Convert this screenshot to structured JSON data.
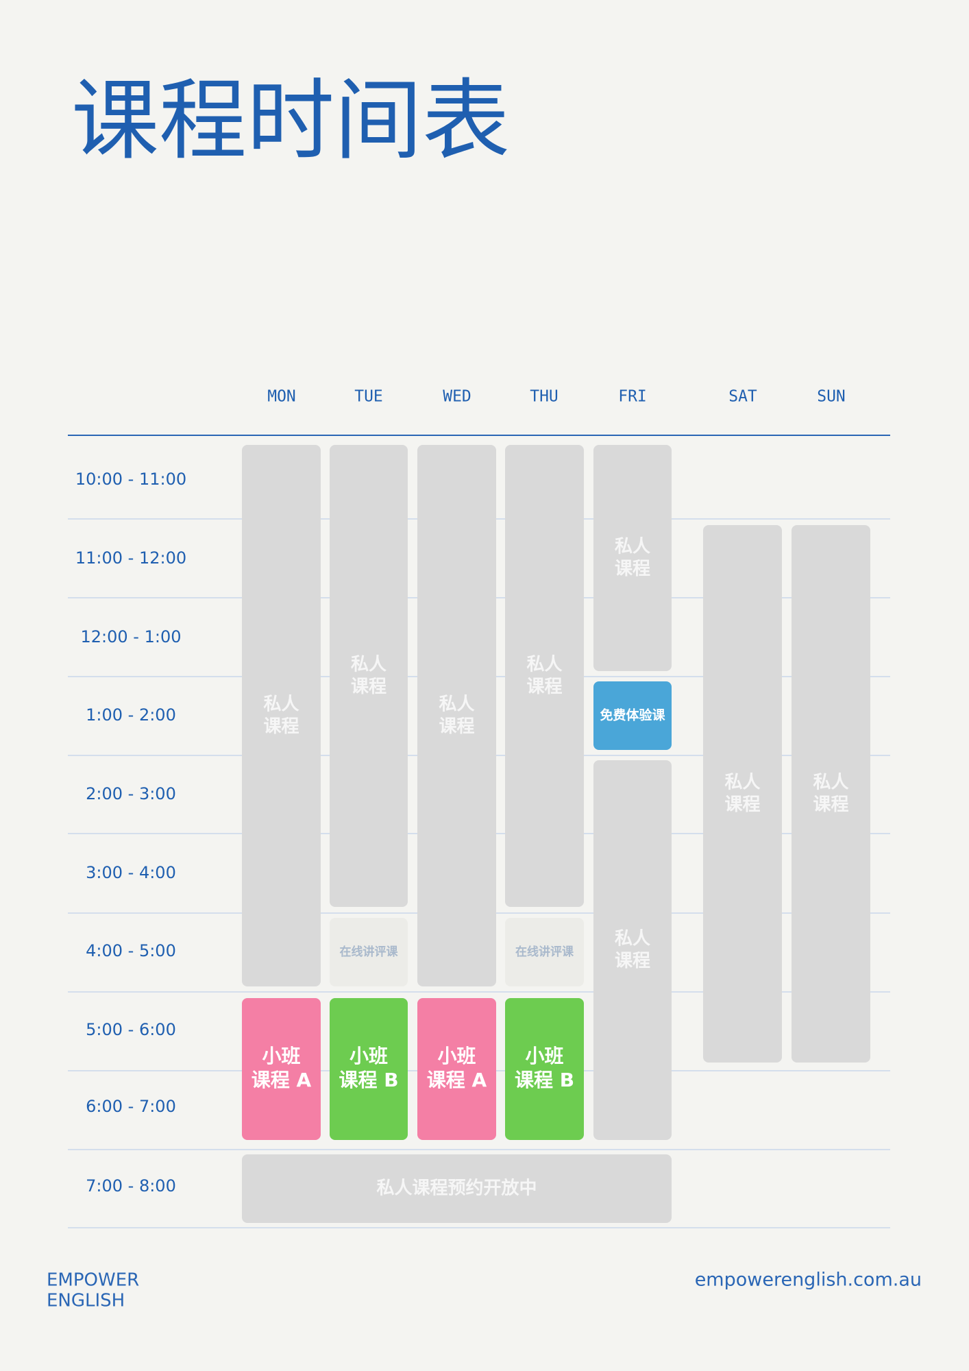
{
  "title": "课程时间表",
  "days": [
    "MON",
    "TUE",
    "WED",
    "THU",
    "FRI",
    "SAT",
    "SUN"
  ],
  "times": [
    "10:00 - 11:00",
    "11:00 - 12:00",
    "12:00 - 1:00",
    "1:00 - 2:00",
    "2:00 - 3:00",
    "3:00 - 4:00",
    "4:00 - 5:00",
    "5:00 - 6:00",
    "6:00 - 7:00",
    "7:00 - 8:00"
  ],
  "blocks": [
    {
      "lines": [
        "私人",
        "课程"
      ]
    },
    {
      "lines": [
        "私人",
        "课程"
      ]
    },
    {
      "lines": [
        "在线讲评课"
      ]
    },
    {
      "lines": [
        "私人",
        "课程"
      ]
    },
    {
      "lines": [
        "私人",
        "课程"
      ]
    },
    {
      "lines": [
        "在线讲评课"
      ]
    },
    {
      "lines": [
        "私人",
        "课程"
      ]
    },
    {
      "lines": [
        "免费体验课"
      ]
    },
    {
      "lines": [
        "私人",
        "课程"
      ]
    },
    {
      "lines": [
        "私人",
        "课程"
      ]
    },
    {
      "lines": [
        "私人",
        "课程"
      ]
    },
    {
      "lines": [
        "小班",
        "课程 A"
      ]
    },
    {
      "lines": [
        "小班",
        "课程 B"
      ]
    },
    {
      "lines": [
        "小班",
        "课程 A"
      ]
    },
    {
      "lines": [
        "小班",
        "课程 B"
      ]
    },
    {
      "lines": [
        "私人课程预约开放中"
      ]
    }
  ],
  "footer": {
    "brand": [
      "EMPOWER",
      "ENGLISH"
    ],
    "url": "empowerenglish.com.au"
  }
}
